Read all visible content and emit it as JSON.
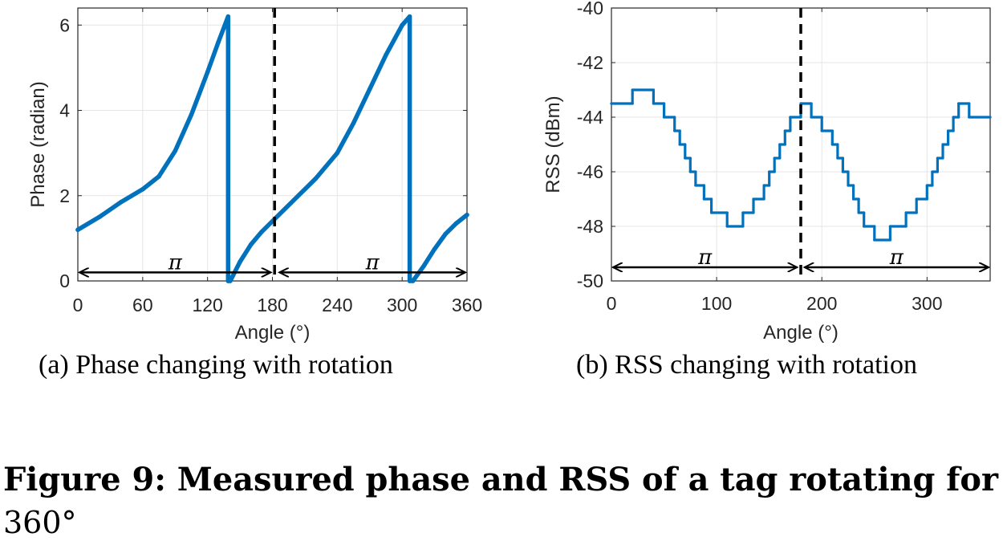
{
  "figure": {
    "title_line1": "Figure 9: Measured phase and RSS of a tag rotating for",
    "title_line2": "360°"
  },
  "chart_data": [
    {
      "type": "line",
      "caption": "(a)  Phase changing with rotation",
      "xlabel": "Angle (°)",
      "ylabel": "Phase (radian)",
      "xlim": [
        0,
        360
      ],
      "ylim": [
        0,
        6.4
      ],
      "xticks": [
        "0",
        "60",
        "120",
        "180",
        "240",
        "300",
        "360"
      ],
      "xtick_values": [
        0,
        60,
        120,
        180,
        240,
        300,
        360
      ],
      "yticks": [
        "0",
        "2",
        "4",
        "6"
      ],
      "ytick_values": [
        0,
        2,
        4,
        6
      ],
      "grid": true,
      "color": "#0072BD",
      "series": [
        {
          "x": [
            0,
            20,
            40,
            60,
            75,
            90,
            105,
            120,
            130,
            139,
            139,
            141,
            150,
            160,
            170,
            180,
            200,
            220,
            240,
            255,
            270,
            285,
            300,
            307,
            307,
            310,
            320,
            330,
            340,
            350,
            360
          ],
          "y": [
            1.2,
            1.5,
            1.85,
            2.15,
            2.45,
            3.05,
            3.9,
            4.9,
            5.6,
            6.2,
            0.0,
            0.0,
            0.45,
            0.85,
            1.15,
            1.4,
            1.9,
            2.4,
            3.0,
            3.7,
            4.5,
            5.3,
            6.0,
            6.2,
            0.0,
            0.0,
            0.35,
            0.75,
            1.1,
            1.35,
            1.55
          ]
        }
      ],
      "vline_x": 182,
      "arrows": [
        {
          "from": 0,
          "to": 180,
          "y": 0.2,
          "label": "π"
        },
        {
          "from": 185,
          "to": 360,
          "y": 0.2,
          "label": "π"
        }
      ]
    },
    {
      "type": "line",
      "caption": "(b)  RSS changing with rotation",
      "xlabel": "Angle (°)",
      "ylabel": "RSS (dBm)",
      "xlim": [
        0,
        360
      ],
      "ylim": [
        -50,
        -40
      ],
      "xticks": [
        "0",
        "100",
        "200",
        "300"
      ],
      "xtick_values": [
        0,
        100,
        200,
        300
      ],
      "yticks": [
        "-40",
        "-42",
        "-44",
        "-46",
        "-48",
        "-50"
      ],
      "ytick_values": [
        -40,
        -42,
        -44,
        -46,
        -48,
        -50
      ],
      "grid": true,
      "color": "#0072BD",
      "series": [
        {
          "x": [
            0,
            20,
            20,
            40,
            40,
            50,
            50,
            60,
            60,
            65,
            65,
            70,
            70,
            75,
            75,
            80,
            80,
            88,
            88,
            95,
            95,
            110,
            110,
            125,
            125,
            135,
            135,
            145,
            145,
            150,
            150,
            155,
            155,
            160,
            160,
            165,
            165,
            170,
            170,
            180,
            180,
            190,
            190,
            200,
            200,
            210,
            210,
            215,
            215,
            220,
            220,
            225,
            225,
            230,
            230,
            235,
            235,
            240,
            240,
            250,
            250,
            265,
            265,
            280,
            280,
            290,
            290,
            300,
            300,
            305,
            305,
            310,
            310,
            315,
            315,
            320,
            320,
            325,
            325,
            330,
            330,
            340,
            340,
            360
          ],
          "y": [
            -43.5,
            -43.5,
            -43,
            -43,
            -43.5,
            -43.5,
            -44,
            -44,
            -44.5,
            -44.5,
            -45,
            -45,
            -45.5,
            -45.5,
            -46,
            -46,
            -46.5,
            -46.5,
            -47,
            -47,
            -47.5,
            -47.5,
            -48,
            -48,
            -47.5,
            -47.5,
            -47,
            -47,
            -46.5,
            -46.5,
            -46,
            -46,
            -45.5,
            -45.5,
            -45,
            -45,
            -44.5,
            -44.5,
            -44,
            -44,
            -43.5,
            -43.5,
            -44,
            -44,
            -44.5,
            -44.5,
            -45,
            -45,
            -45.5,
            -45.5,
            -46,
            -46,
            -46.5,
            -46.5,
            -47,
            -47,
            -47.5,
            -47.5,
            -48,
            -48,
            -48.5,
            -48.5,
            -48,
            -48,
            -47.5,
            -47.5,
            -47,
            -47,
            -46.5,
            -46.5,
            -46,
            -46,
            -45.5,
            -45.5,
            -45,
            -45,
            -44.5,
            -44.5,
            -44,
            -44,
            -43.5,
            -43.5,
            -44,
            -44
          ]
        }
      ],
      "vline_x": 180,
      "arrows": [
        {
          "from": 0,
          "to": 178,
          "y": -49.5,
          "label": "π"
        },
        {
          "from": 182,
          "to": 360,
          "y": -49.5,
          "label": "π"
        }
      ]
    }
  ]
}
